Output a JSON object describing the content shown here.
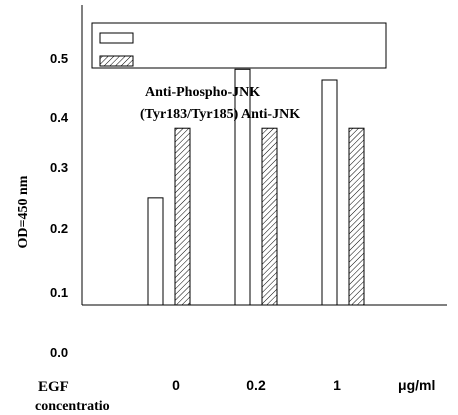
{
  "chart_data": {
    "type": "bar",
    "ylabel": "OD=450 nm",
    "xlabel": [
      "EGF",
      "concentratio"
    ],
    "x_unit": "μg/ml",
    "categories": [
      "0",
      "0.2",
      "1"
    ],
    "yticks": [
      "0.0",
      "0.1",
      "0.2",
      "0.3",
      "0.4",
      "0.5"
    ],
    "ylim": [
      0.0,
      0.56
    ],
    "grid": false,
    "legend_position": "top",
    "legend_label": [
      "Anti-Phospho-JNK",
      "(Tyr183/Tyr185) Anti-JNK"
    ],
    "series": [
      {
        "values": [
          0.2,
          0.44,
          0.42
        ],
        "fill": "#ffffff"
      },
      {
        "values": [
          0.33,
          0.33,
          0.33
        ],
        "fill": "hatch"
      }
    ]
  }
}
